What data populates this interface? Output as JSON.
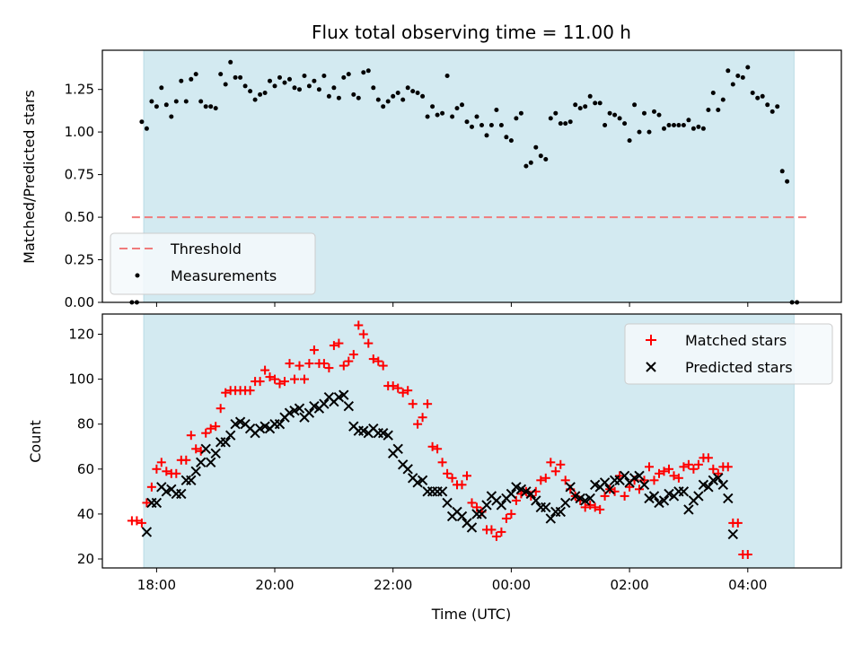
{
  "chart_data": [
    {
      "type": "scatter",
      "panel": "top",
      "title": "Flux total observing time = 11.00 h",
      "xlabel": "",
      "ylabel": "Matched/Predicted stars",
      "ylim": [
        0,
        1.48
      ],
      "yticks": [
        "0.00",
        "0.25",
        "0.50",
        "0.75",
        "1.00",
        "1.25"
      ],
      "ytick_values": [
        0,
        0.25,
        0.5,
        0.75,
        1.0,
        1.25
      ],
      "shaded_span": [
        "17:47",
        "04:47"
      ],
      "shade_color": "#d3eaf1",
      "grid": false,
      "legend_position": "lower-left",
      "threshold": {
        "name": "Threshold",
        "value": 0.5,
        "x_start": "17:35",
        "x_end": "05:00",
        "color": "#f07b7b"
      },
      "series": [
        {
          "name": "Measurements",
          "color": "#000000",
          "x_start": "17:35",
          "x_step_minutes": 5,
          "y": [
            0,
            0,
            1.06,
            1.02,
            1.18,
            1.15,
            1.26,
            1.16,
            1.09,
            1.18,
            1.3,
            1.18,
            1.31,
            1.34,
            1.18,
            1.15,
            1.15,
            1.14,
            1.34,
            1.28,
            1.41,
            1.32,
            1.32,
            1.27,
            1.24,
            1.19,
            1.22,
            1.23,
            1.3,
            1.27,
            1.32,
            1.29,
            1.31,
            1.26,
            1.25,
            1.33,
            1.27,
            1.3,
            1.25,
            1.33,
            1.21,
            1.26,
            1.2,
            1.32,
            1.34,
            1.22,
            1.2,
            1.35,
            1.36,
            1.26,
            1.19,
            1.15,
            1.18,
            1.21,
            1.23,
            1.19,
            1.26,
            1.24,
            1.23,
            1.21,
            1.09,
            1.15,
            1.1,
            1.11,
            1.33,
            1.09,
            1.14,
            1.16,
            1.06,
            1.03,
            1.09,
            1.04,
            0.98,
            1.04,
            1.13,
            1.04,
            0.97,
            0.95,
            1.08,
            1.11,
            0.8,
            0.82,
            0.91,
            0.86,
            0.84,
            1.08,
            1.11,
            1.05,
            1.05,
            1.06,
            1.16,
            1.14,
            1.15,
            1.21,
            1.17,
            1.17,
            1.04,
            1.11,
            1.1,
            1.08,
            1.05,
            0.95,
            1.16,
            1.0,
            1.11,
            1.0,
            1.12,
            1.1,
            1.02,
            1.04,
            1.04,
            1.04,
            1.04,
            1.07,
            1.02,
            1.03,
            1.02,
            1.13,
            1.23,
            1.13,
            1.19,
            1.36,
            1.28,
            1.33,
            1.32,
            1.38,
            1.23,
            1.2,
            1.21,
            1.16,
            1.12,
            1.15,
            0.77,
            0.71,
            0.0,
            0.0
          ]
        }
      ]
    },
    {
      "type": "scatter",
      "panel": "bottom",
      "xlabel": "Time (UTC)",
      "ylabel": "Count",
      "ylim": [
        16,
        129
      ],
      "yticks": [
        "20",
        "40",
        "60",
        "80",
        "100",
        "120"
      ],
      "ytick_values": [
        20,
        40,
        60,
        80,
        100,
        120
      ],
      "xticks": [
        "18:00",
        "20:00",
        "22:00",
        "00:00",
        "02:00",
        "04:00"
      ],
      "xtick_minutes": [
        0,
        120,
        240,
        360,
        480,
        600
      ],
      "xlim_minutes": [
        -55,
        695
      ],
      "shaded_span": [
        "17:47",
        "04:47"
      ],
      "grid": false,
      "legend_position": "top-right",
      "series": [
        {
          "name": "Matched stars",
          "marker": "plus",
          "color": "#ff0000",
          "x_start": "17:35",
          "x_step_minutes": 5,
          "y": [
            37,
            37,
            36,
            45,
            52,
            60,
            63,
            59,
            58,
            58,
            64,
            64,
            75,
            69,
            68,
            76,
            78,
            79,
            87,
            94,
            95,
            95,
            95,
            95,
            95,
            99,
            99,
            104,
            101,
            100,
            98,
            99,
            107,
            100,
            106,
            100,
            107,
            113,
            107,
            107,
            105,
            115,
            116,
            106,
            108,
            111,
            124,
            120,
            116,
            109,
            108,
            106,
            97,
            97,
            96,
            94,
            95,
            89,
            80,
            83,
            89,
            70,
            69,
            63,
            58,
            56,
            53,
            53,
            57,
            45,
            43,
            41,
            33,
            33,
            30,
            32,
            38,
            40,
            46,
            49,
            50,
            48,
            50,
            55,
            56,
            63,
            59,
            62,
            55,
            51,
            48,
            46,
            43,
            44,
            43,
            42,
            48,
            51,
            50,
            57,
            48,
            52,
            55,
            51,
            55,
            61,
            55,
            58,
            59,
            60,
            57,
            56,
            61,
            62,
            60,
            62,
            65,
            65,
            60,
            58,
            61,
            61,
            36,
            36,
            22,
            22
          ]
        },
        {
          "name": "Predicted stars",
          "marker": "x",
          "color": "#000000",
          "x_start": "17:50",
          "x_step_minutes": 5,
          "y": [
            32,
            45,
            45,
            52,
            50,
            51,
            49,
            49,
            55,
            55,
            59,
            63,
            69,
            63,
            67,
            72,
            72,
            75,
            80,
            81,
            80,
            78,
            76,
            78,
            79,
            78,
            80,
            80,
            83,
            85,
            86,
            87,
            83,
            85,
            88,
            87,
            89,
            92,
            90,
            92,
            93,
            88,
            79,
            77,
            77,
            76,
            78,
            76,
            76,
            75,
            67,
            69,
            62,
            60,
            56,
            54,
            55,
            50,
            50,
            50,
            50,
            45,
            39,
            41,
            39,
            36,
            34,
            40,
            40,
            44,
            48,
            46,
            44,
            47,
            49,
            52,
            51,
            50,
            49,
            46,
            43,
            43,
            38,
            41,
            41,
            45,
            52,
            48,
            47,
            46,
            47,
            53,
            52,
            54,
            51,
            55,
            55,
            57,
            54,
            56,
            57,
            53,
            47,
            48,
            45,
            46,
            49,
            48,
            50,
            50,
            42,
            46,
            48,
            53,
            52,
            55,
            56,
            53,
            47,
            31
          ]
        }
      ]
    }
  ]
}
